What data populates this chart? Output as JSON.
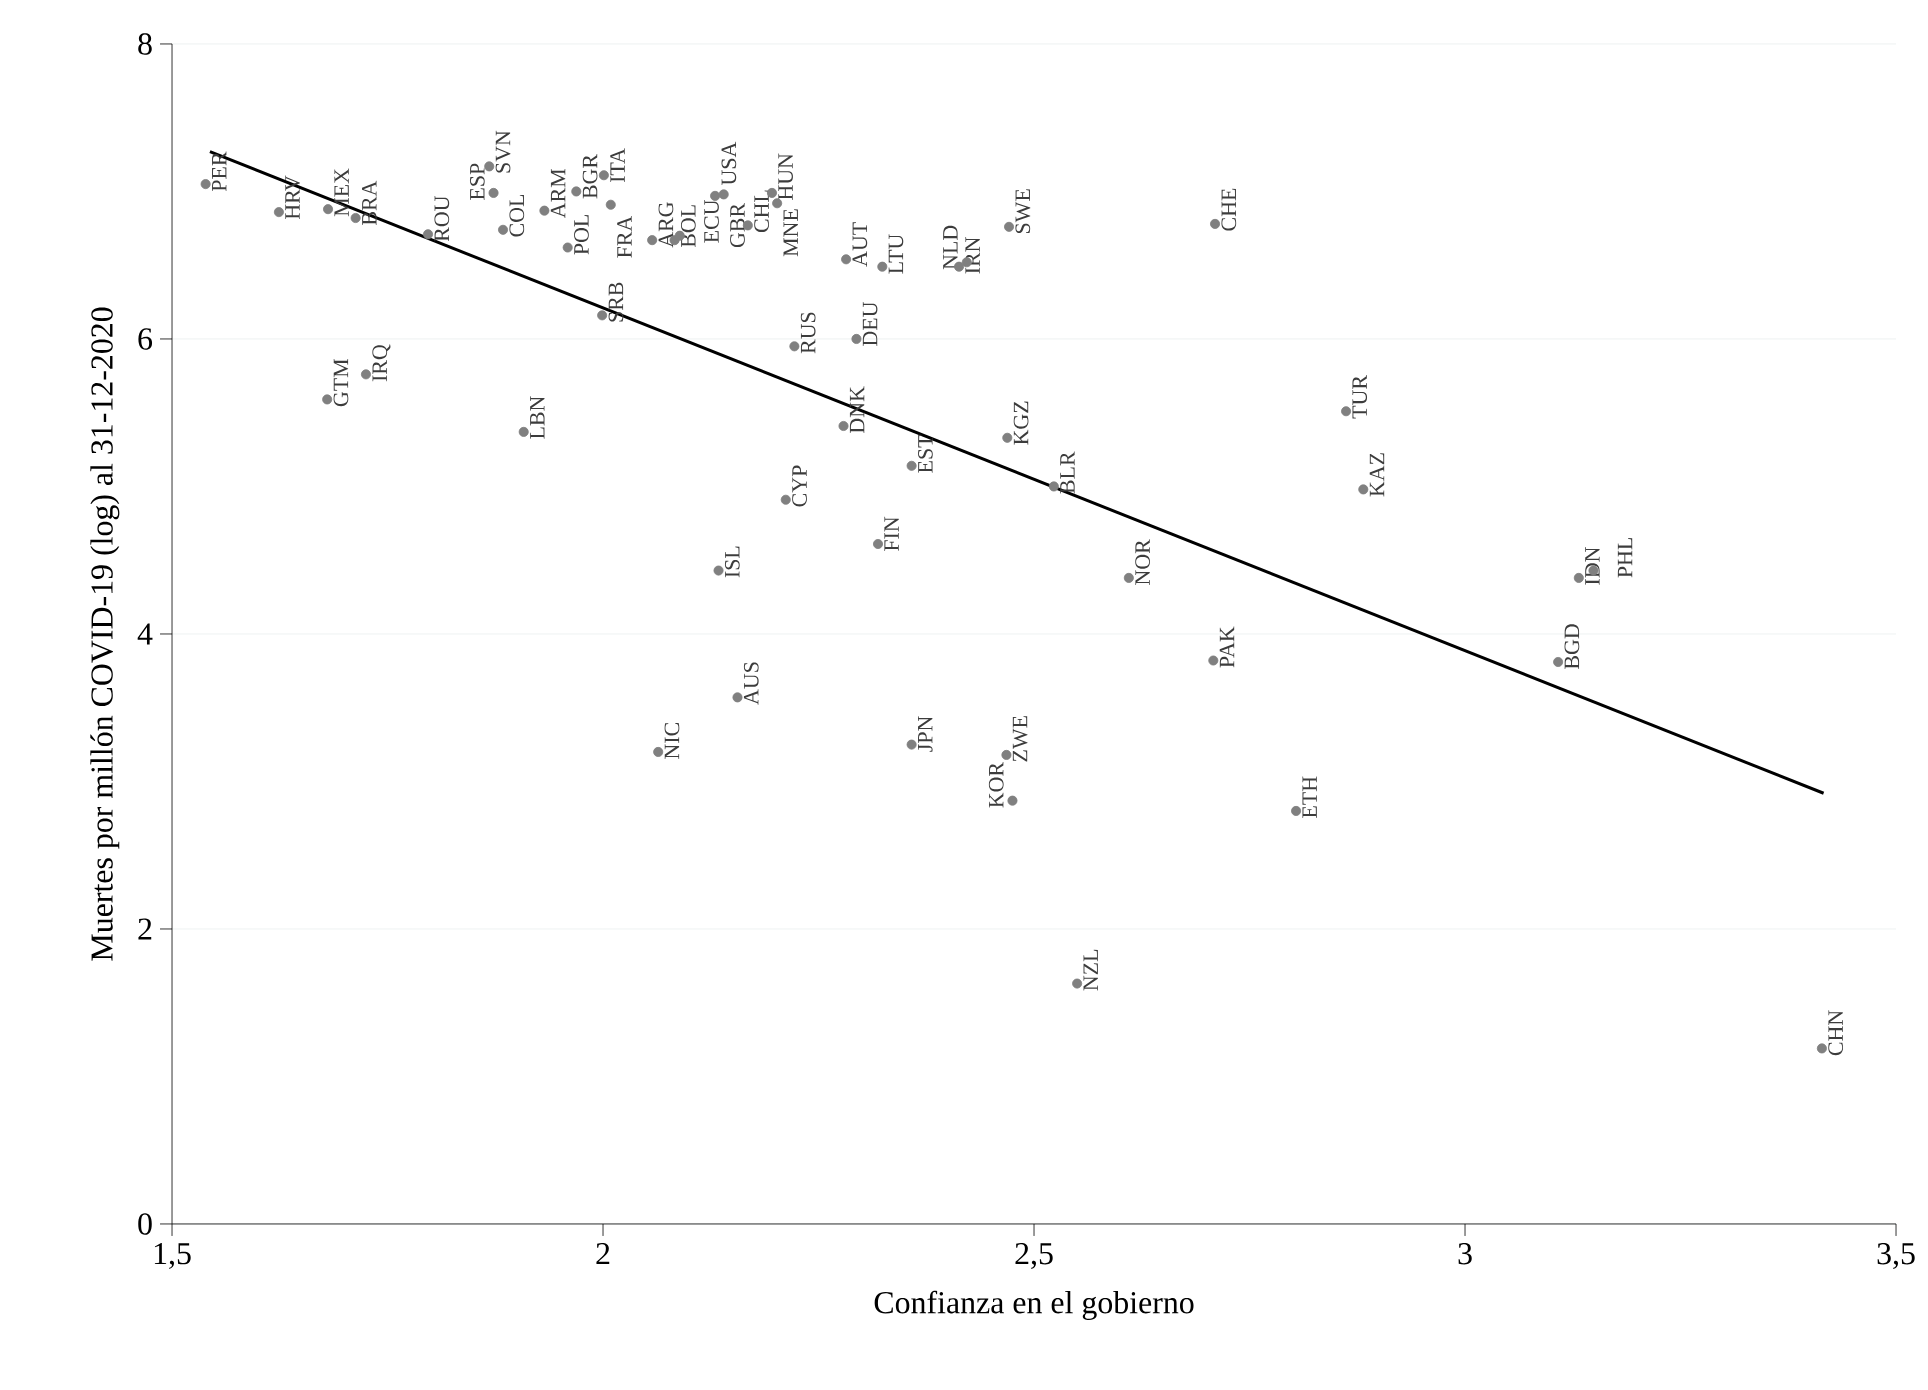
{
  "chart_data": {
    "type": "scatter",
    "xlabel": "Confianza en el gobierno",
    "ylabel": "Muertes por millón COVID-19 (log) al 31-12-2020",
    "xlim": [
      1.5,
      3.5
    ],
    "ylim": [
      0,
      8
    ],
    "xticks": [
      {
        "value": 1.5,
        "label": "1,5"
      },
      2,
      {
        "value": 2.5,
        "label": "2,5"
      },
      3,
      {
        "value": 3.5,
        "label": "3,5"
      }
    ],
    "yticks": [
      0,
      2,
      4,
      6,
      8
    ],
    "grid": "y",
    "marker": "circle",
    "series": [
      {
        "color": "#808080",
        "x": [
          1.539,
          1.624,
          1.681,
          1.713,
          1.797,
          1.868,
          1.873,
          1.884,
          1.932,
          1.959,
          1.969,
          2.001,
          2.009,
          2.057,
          2.083,
          2.089,
          2.13,
          2.14,
          2.168,
          2.196,
          2.202,
          2.282,
          2.324,
          2.413,
          2.422,
          2.471,
          1.999,
          2.222,
          2.294,
          1.68,
          1.725,
          1.908,
          2.279,
          2.469,
          2.358,
          2.523,
          2.212,
          2.319,
          2.134,
          2.156,
          2.064,
          2.358,
          2.468,
          2.475,
          2.804,
          2.55,
          2.708,
          2.71,
          2.862,
          2.882,
          2.61,
          3.108,
          3.132,
          3.149,
          3.414
        ],
        "values": [
          7.05,
          6.86,
          6.88,
          6.82,
          6.71,
          7.17,
          6.99,
          6.74,
          6.87,
          6.62,
          7.0,
          7.11,
          6.91,
          6.67,
          6.67,
          6.7,
          6.97,
          6.98,
          6.77,
          6.99,
          6.92,
          6.54,
          6.49,
          6.49,
          6.52,
          6.76,
          6.16,
          5.95,
          6.0,
          5.59,
          5.76,
          5.37,
          5.41,
          5.33,
          5.14,
          5.0,
          4.91,
          4.61,
          4.43,
          3.57,
          3.2,
          3.25,
          3.18,
          2.87,
          2.8,
          1.63,
          3.82,
          6.78,
          5.51,
          4.98,
          4.38,
          3.81,
          4.38,
          4.43,
          1.19
        ]
      },
      {
        "type": "line",
        "color": "#000000",
        "marker": "none",
        "line_style": "solid",
        "x": [
          1.544,
          3.416
        ],
        "values": [
          7.27,
          2.92
        ]
      }
    ],
    "annotations": [
      {
        "text": "PER",
        "x": 1.539,
        "y": 7.05
      },
      {
        "text": "HRV",
        "x": 1.624,
        "y": 6.86
      },
      {
        "text": "MEX",
        "x": 1.681,
        "y": 6.88
      },
      {
        "text": "BRA",
        "x": 1.713,
        "y": 6.82
      },
      {
        "text": "ROU",
        "x": 1.797,
        "y": 6.71
      },
      {
        "text": "SVN",
        "x": 1.868,
        "y": 7.17
      },
      {
        "text": "ESP",
        "x": 1.873,
        "y": 6.99
      },
      {
        "text": "COL",
        "x": 1.884,
        "y": 6.74
      },
      {
        "text": "ARM",
        "x": 1.932,
        "y": 6.87
      },
      {
        "text": "POL",
        "x": 1.959,
        "y": 6.62
      },
      {
        "text": "BGR",
        "x": 1.969,
        "y": 7.0
      },
      {
        "text": "ITA",
        "x": 2.001,
        "y": 7.11
      },
      {
        "text": "FRA",
        "x": 2.009,
        "y": 6.91
      },
      {
        "text": "ARG",
        "x": 2.057,
        "y": 6.67
      },
      {
        "text": "BOL",
        "x": 2.083,
        "y": 6.67
      },
      {
        "text": "ECU",
        "x": 2.089,
        "y": 6.7
      },
      {
        "text": "USA",
        "x": 2.13,
        "y": 6.97
      },
      {
        "text": "GBR",
        "x": 2.14,
        "y": 6.98
      },
      {
        "text": "CHL",
        "x": 2.168,
        "y": 6.77
      },
      {
        "text": "HUN",
        "x": 2.196,
        "y": 6.99
      },
      {
        "text": "MNE",
        "x": 2.202,
        "y": 6.92
      },
      {
        "text": "AUT",
        "x": 2.282,
        "y": 6.54
      },
      {
        "text": "LTU",
        "x": 2.324,
        "y": 6.49
      },
      {
        "text": "IRN",
        "x": 2.413,
        "y": 6.49
      },
      {
        "text": "NLD",
        "x": 2.422,
        "y": 6.52
      },
      {
        "text": "SWE",
        "x": 2.471,
        "y": 6.76
      },
      {
        "text": "SRB",
        "x": 1.999,
        "y": 6.16
      },
      {
        "text": "RUS",
        "x": 2.222,
        "y": 5.95
      },
      {
        "text": "DEU",
        "x": 2.294,
        "y": 6.0
      },
      {
        "text": "GTM",
        "x": 1.68,
        "y": 5.59
      },
      {
        "text": "IRQ",
        "x": 1.725,
        "y": 5.76
      },
      {
        "text": "LBN",
        "x": 1.908,
        "y": 5.37
      },
      {
        "text": "DNK",
        "x": 2.279,
        "y": 5.41
      },
      {
        "text": "KGZ",
        "x": 2.469,
        "y": 5.33
      },
      {
        "text": "EST",
        "x": 2.358,
        "y": 5.14
      },
      {
        "text": "BLR",
        "x": 2.523,
        "y": 5.0
      },
      {
        "text": "CYP",
        "x": 2.212,
        "y": 4.91
      },
      {
        "text": "FIN",
        "x": 2.319,
        "y": 4.61
      },
      {
        "text": "ISL",
        "x": 2.134,
        "y": 4.43
      },
      {
        "text": "AUS",
        "x": 2.156,
        "y": 3.57
      },
      {
        "text": "NIC",
        "x": 2.064,
        "y": 3.2
      },
      {
        "text": "JPN",
        "x": 2.358,
        "y": 3.25
      },
      {
        "text": "ZWE",
        "x": 2.468,
        "y": 3.18
      },
      {
        "text": "KOR",
        "x": 2.475,
        "y": 2.87
      },
      {
        "text": "ETH",
        "x": 2.804,
        "y": 2.8
      },
      {
        "text": "NZL",
        "x": 2.55,
        "y": 1.63
      },
      {
        "text": "PAK",
        "x": 2.708,
        "y": 3.82
      },
      {
        "text": "CHE",
        "x": 2.71,
        "y": 6.78
      },
      {
        "text": "TUR",
        "x": 2.862,
        "y": 5.51
      },
      {
        "text": "KAZ",
        "x": 2.882,
        "y": 4.98
      },
      {
        "text": "NOR",
        "x": 2.61,
        "y": 4.38
      },
      {
        "text": "BGD",
        "x": 3.108,
        "y": 3.81
      },
      {
        "text": "IDN",
        "x": 3.132,
        "y": 4.38
      },
      {
        "text": "PHL",
        "x": 3.149,
        "y": 4.43
      },
      {
        "text": "CHN",
        "x": 3.414,
        "y": 1.19
      }
    ]
  }
}
